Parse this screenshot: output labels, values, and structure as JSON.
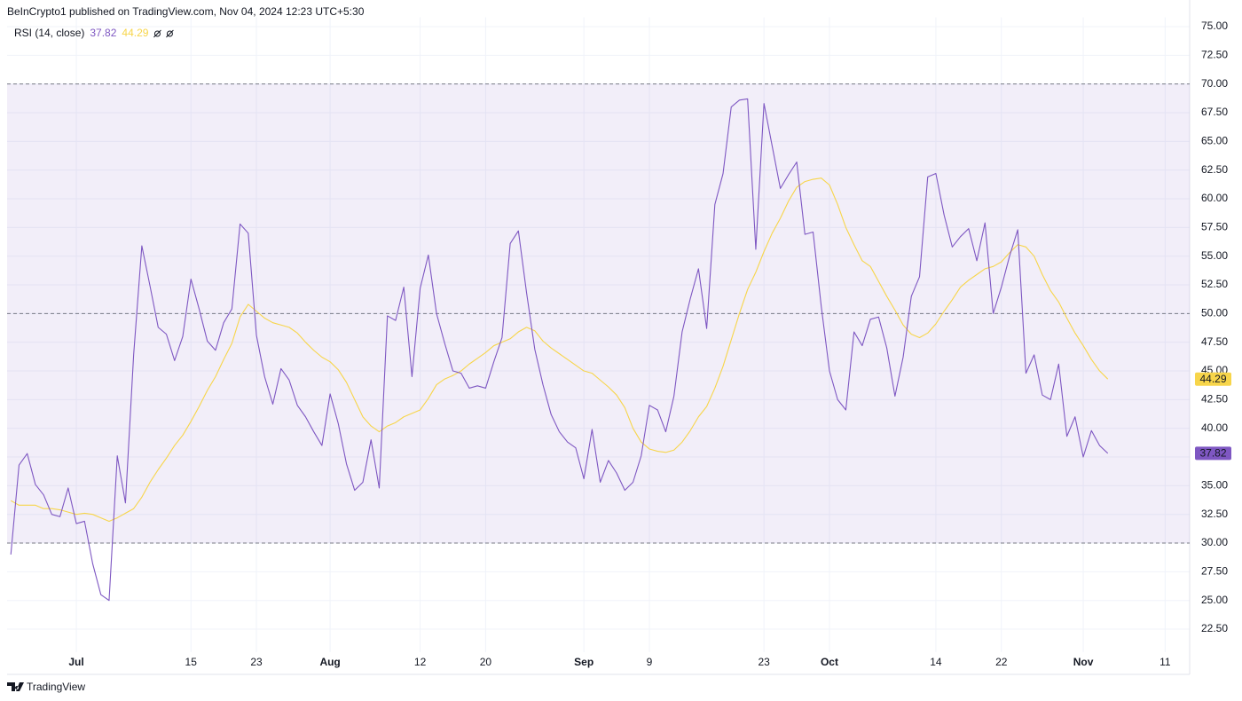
{
  "chart_data": {
    "type": "line",
    "title": "BeInCrypto1 published on TradingView.com, Nov 04, 2024 12:23 UTC+5:30",
    "indicator": "RSI (14, close)",
    "footer": "TradingView",
    "x": [
      "2024-06-23",
      "2024-06-24",
      "2024-06-25",
      "2024-06-26",
      "2024-06-27",
      "2024-06-28",
      "2024-06-29",
      "2024-06-30",
      "2024-07-01",
      "2024-07-02",
      "2024-07-03",
      "2024-07-04",
      "2024-07-05",
      "2024-07-06",
      "2024-07-07",
      "2024-07-08",
      "2024-07-09",
      "2024-07-10",
      "2024-07-11",
      "2024-07-12",
      "2024-07-13",
      "2024-07-14",
      "2024-07-15",
      "2024-07-16",
      "2024-07-17",
      "2024-07-18",
      "2024-07-19",
      "2024-07-20",
      "2024-07-21",
      "2024-07-22",
      "2024-07-23",
      "2024-07-24",
      "2024-07-25",
      "2024-07-26",
      "2024-07-27",
      "2024-07-28",
      "2024-07-29",
      "2024-07-30",
      "2024-07-31",
      "2024-08-01",
      "2024-08-02",
      "2024-08-03",
      "2024-08-04",
      "2024-08-05",
      "2024-08-06",
      "2024-08-07",
      "2024-08-08",
      "2024-08-09",
      "2024-08-10",
      "2024-08-11",
      "2024-08-12",
      "2024-08-13",
      "2024-08-14",
      "2024-08-15",
      "2024-08-16",
      "2024-08-17",
      "2024-08-18",
      "2024-08-19",
      "2024-08-20",
      "2024-08-21",
      "2024-08-22",
      "2024-08-23",
      "2024-08-24",
      "2024-08-25",
      "2024-08-26",
      "2024-08-27",
      "2024-08-28",
      "2024-08-29",
      "2024-08-30",
      "2024-08-31",
      "2024-09-01",
      "2024-09-02",
      "2024-09-03",
      "2024-09-04",
      "2024-09-05",
      "2024-09-06",
      "2024-09-07",
      "2024-09-08",
      "2024-09-09",
      "2024-09-10",
      "2024-09-11",
      "2024-09-12",
      "2024-09-13",
      "2024-09-14",
      "2024-09-15",
      "2024-09-16",
      "2024-09-17",
      "2024-09-18",
      "2024-09-19",
      "2024-09-20",
      "2024-09-21",
      "2024-09-22",
      "2024-09-23",
      "2024-09-24",
      "2024-09-25",
      "2024-09-26",
      "2024-09-27",
      "2024-09-28",
      "2024-09-29",
      "2024-09-30",
      "2024-10-01",
      "2024-10-02",
      "2024-10-03",
      "2024-10-04",
      "2024-10-05",
      "2024-10-06",
      "2024-10-07",
      "2024-10-08",
      "2024-10-09",
      "2024-10-10",
      "2024-10-11",
      "2024-10-12",
      "2024-10-13",
      "2024-10-14",
      "2024-10-15",
      "2024-10-16",
      "2024-10-17",
      "2024-10-18",
      "2024-10-19",
      "2024-10-20",
      "2024-10-21",
      "2024-10-22",
      "2024-10-23",
      "2024-10-24",
      "2024-10-25",
      "2024-10-26",
      "2024-10-27",
      "2024-10-28",
      "2024-10-29",
      "2024-10-30",
      "2024-10-31",
      "2024-11-01",
      "2024-11-02",
      "2024-11-03",
      "2024-11-04"
    ],
    "series": [
      {
        "color": "#7e57c2",
        "values": [
          29.0,
          36.8,
          37.8,
          35.1,
          34.2,
          32.5,
          32.3,
          34.8,
          31.7,
          31.9,
          28.2,
          25.5,
          25.0,
          37.6,
          33.5,
          46.4,
          55.9,
          52.4,
          48.8,
          48.2,
          45.9,
          48.0,
          53.0,
          50.4,
          47.6,
          46.8,
          49.2,
          50.4,
          57.8,
          57.0,
          48.1,
          44.5,
          42.1,
          45.2,
          44.2,
          42.0,
          41.0,
          39.7,
          38.5,
          43.0,
          40.4,
          36.9,
          34.6,
          35.3,
          39.0,
          34.8,
          49.8,
          49.4,
          52.3,
          44.5,
          52.2,
          55.1,
          50.0,
          47.4,
          45.0,
          44.8,
          43.5,
          43.7,
          43.5,
          45.8,
          47.9,
          56.1,
          57.2,
          51.8,
          46.9,
          43.8,
          41.2,
          39.7,
          38.8,
          38.3,
          35.6,
          39.9,
          35.3,
          37.2,
          36.1,
          34.6,
          35.3,
          37.6,
          42.0,
          41.6,
          39.7,
          42.8,
          48.4,
          51.3,
          53.9,
          48.7,
          59.5,
          62.2,
          68.0,
          68.6,
          68.7,
          55.6,
          68.3,
          64.6,
          60.9,
          62.1,
          63.2,
          56.9,
          57.1,
          50.6,
          45.0,
          42.5,
          41.6,
          48.4,
          47.2,
          49.5,
          49.7,
          47.0,
          42.8,
          46.2,
          51.5,
          53.2,
          61.9,
          62.2,
          58.6,
          55.8,
          56.7,
          57.4,
          54.6,
          57.9,
          50.0,
          52.3,
          55.0,
          57.3,
          44.8,
          46.4,
          42.9,
          42.5,
          45.6,
          39.3,
          41.0,
          37.5,
          39.8,
          38.5,
          37.82
        ]
      },
      {
        "color": "#f7d54a",
        "values": [
          33.7,
          33.3,
          33.3,
          33.3,
          33.0,
          33.0,
          32.9,
          32.7,
          32.5,
          32.6,
          32.5,
          32.2,
          31.9,
          32.2,
          32.6,
          33.0,
          34.0,
          35.3,
          36.4,
          37.4,
          38.5,
          39.4,
          40.6,
          41.9,
          43.3,
          44.5,
          46.0,
          47.4,
          49.7,
          50.8,
          50.2,
          49.6,
          49.2,
          49.0,
          48.8,
          48.3,
          47.5,
          46.8,
          46.2,
          45.8,
          45.1,
          44.0,
          42.5,
          41.0,
          40.2,
          39.7,
          40.2,
          40.5,
          41.0,
          41.3,
          41.6,
          42.6,
          43.8,
          44.3,
          44.6,
          45.0,
          45.6,
          46.1,
          46.6,
          47.2,
          47.5,
          47.8,
          48.4,
          48.8,
          48.5,
          47.6,
          47.0,
          46.5,
          46.0,
          45.5,
          45.0,
          44.8,
          44.2,
          43.6,
          42.9,
          41.8,
          40.0,
          38.8,
          38.2,
          38.0,
          37.9,
          38.1,
          38.8,
          39.8,
          41.0,
          41.9,
          43.5,
          45.4,
          47.7,
          50.0,
          52.1,
          53.6,
          55.4,
          57.0,
          58.3,
          59.8,
          61.0,
          61.5,
          61.7,
          61.8,
          61.2,
          59.5,
          57.5,
          56.0,
          54.6,
          54.1,
          52.8,
          51.5,
          50.3,
          49.0,
          48.2,
          47.9,
          48.3,
          49.1,
          50.2,
          51.2,
          52.3,
          52.9,
          53.4,
          53.9,
          54.1,
          54.5,
          55.3,
          56.0,
          55.8,
          55.0,
          53.4,
          52.0,
          51.0,
          49.6,
          48.3,
          47.2,
          46.0,
          45.0,
          44.29
        ]
      }
    ],
    "levels": [
      30,
      50,
      70
    ],
    "band_color": "rgba(126,87,194,0.1)",
    "xlim": [
      "2024-06-22",
      "2024-11-14"
    ],
    "xticks": [
      {
        "value": "2024-07-01",
        "label": "Jul"
      },
      {
        "value": "2024-07-15",
        "label": "15"
      },
      {
        "value": "2024-07-23",
        "label": "23"
      },
      {
        "value": "2024-08-01",
        "label": "Aug"
      },
      {
        "value": "2024-08-12",
        "label": "12"
      },
      {
        "value": "2024-08-20",
        "label": "20"
      },
      {
        "value": "2024-09-01",
        "label": "Sep"
      },
      {
        "value": "2024-09-09",
        "label": "9"
      },
      {
        "value": "2024-09-23",
        "label": "23"
      },
      {
        "value": "2024-10-01",
        "label": "Oct"
      },
      {
        "value": "2024-10-14",
        "label": "14"
      },
      {
        "value": "2024-10-22",
        "label": "22"
      },
      {
        "value": "2024-11-01",
        "label": "Nov"
      },
      {
        "value": "2024-11-11",
        "label": "11"
      }
    ],
    "ylim": [
      20.5,
      75.5
    ],
    "yticks": [
      {
        "value": 22.5,
        "label": "22.50"
      },
      {
        "value": 25,
        "label": "25.00"
      },
      {
        "value": 27.5,
        "label": "27.50"
      },
      {
        "value": 30,
        "label": "30.00"
      },
      {
        "value": 32.5,
        "label": "32.50"
      },
      {
        "value": 35,
        "label": "35.00"
      },
      {
        "value": 37.5,
        "label": "37.50"
      },
      {
        "value": 40,
        "label": "40.00"
      },
      {
        "value": 42.5,
        "label": "42.50"
      },
      {
        "value": 45,
        "label": "45.00"
      },
      {
        "value": 47.5,
        "label": "47.50"
      },
      {
        "value": 50,
        "label": "50.00"
      },
      {
        "value": 52.5,
        "label": "52.50"
      },
      {
        "value": 55,
        "label": "55.00"
      },
      {
        "value": 57.5,
        "label": "57.50"
      },
      {
        "value": 60,
        "label": "60.00"
      },
      {
        "value": 62.5,
        "label": "62.50"
      },
      {
        "value": 65,
        "label": "65.00"
      },
      {
        "value": 67.5,
        "label": "67.50"
      },
      {
        "value": 70,
        "label": "70.00"
      },
      {
        "value": 72.5,
        "label": "72.50"
      },
      {
        "value": 75,
        "label": "75.00"
      }
    ],
    "grid": true
  }
}
